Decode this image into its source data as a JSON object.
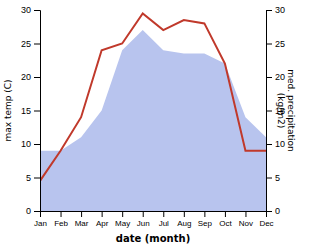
{
  "chart_data": {
    "type": "line",
    "categories": [
      "Jan",
      "Feb",
      "Mar",
      "Apr",
      "May",
      "Jun",
      "Jul",
      "Aug",
      "Sep",
      "Oct",
      "Nov",
      "Dec"
    ],
    "xlabel": "date (month)",
    "ylabel": "max temp (C)",
    "y2label": "med. precipitation\n(kg/m2)",
    "ylim": [
      0,
      30
    ],
    "yticks": [
      0,
      5,
      10,
      15,
      20,
      25,
      30
    ],
    "y2lim": [
      0,
      30
    ],
    "y2ticks": [
      0,
      5,
      10,
      15,
      20,
      25,
      30
    ],
    "grid": false,
    "series": [
      {
        "type": "area",
        "axis": "y2",
        "color": "#b8c4ee",
        "values": [
          9.0,
          9.0,
          11.0,
          15.0,
          24.0,
          27.0,
          24.0,
          23.5,
          23.5,
          22.0,
          14.0,
          11.0
        ]
      },
      {
        "type": "line",
        "color": "#c0392b",
        "values": [
          4.5,
          9.0,
          14.0,
          24.0,
          25.0,
          29.5,
          27.0,
          28.5,
          28.0,
          22.0,
          9.0,
          9.0
        ]
      }
    ]
  }
}
